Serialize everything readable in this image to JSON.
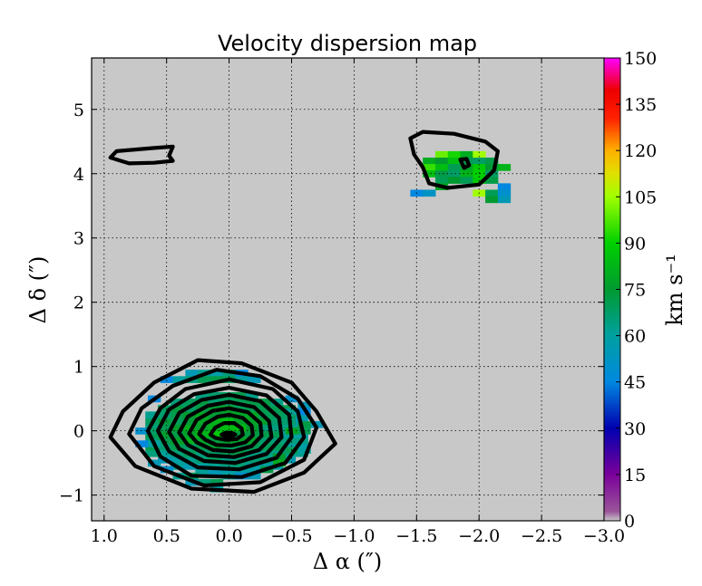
{
  "chart_data": {
    "type": "heatmap",
    "title": "Velocity dispersion map",
    "xlabel": "Δ α  (″)",
    "ylabel": "Δ δ  (″)",
    "xlim": [
      1.1,
      -3.0
    ],
    "ylim": [
      -1.4,
      5.8
    ],
    "x_ticks": [
      1.0,
      0.5,
      0.0,
      -0.5,
      -1.0,
      -1.5,
      -2.0,
      -2.5,
      -3.0
    ],
    "x_tick_labels": [
      "1.0",
      "0.5",
      "0.0",
      "−0.5",
      "−1.0",
      "−1.5",
      "−2.0",
      "−2.5",
      "−3.0"
    ],
    "y_ticks": [
      -1,
      0,
      1,
      2,
      3,
      4,
      5
    ],
    "y_tick_labels": [
      "−1",
      "0",
      "1",
      "2",
      "3",
      "4",
      "5"
    ],
    "grid": true,
    "background_color": "#c8c8c8",
    "colorbar": {
      "label": "km s⁻¹",
      "range": [
        0,
        150
      ],
      "ticks": [
        0,
        15,
        30,
        45,
        60,
        75,
        90,
        105,
        120,
        135,
        150
      ],
      "tick_labels": [
        "0",
        "15",
        "30",
        "45",
        "60",
        "75",
        "90",
        "105",
        "120",
        "135",
        "150"
      ]
    },
    "pixel_size_arcsec": 0.1,
    "pixels": [
      {
        "x": 0.5,
        "y": 0.8,
        "v": 45
      },
      {
        "x": 0.3,
        "y": 0.9,
        "v": 55
      },
      {
        "x": 0.2,
        "y": 0.9,
        "v": 62
      },
      {
        "x": 0.1,
        "y": 0.9,
        "v": 58
      },
      {
        "x": 0.0,
        "y": 0.9,
        "v": 65
      },
      {
        "x": -0.1,
        "y": 0.9,
        "v": 45
      },
      {
        "x": 0.4,
        "y": 0.8,
        "v": 60
      },
      {
        "x": 0.3,
        "y": 0.8,
        "v": 65
      },
      {
        "x": 0.2,
        "y": 0.8,
        "v": 70
      },
      {
        "x": 0.1,
        "y": 0.8,
        "v": 72
      },
      {
        "x": 0.0,
        "y": 0.8,
        "v": 70
      },
      {
        "x": -0.1,
        "y": 0.8,
        "v": 60
      },
      {
        "x": -0.2,
        "y": 0.8,
        "v": 55
      },
      {
        "x": 0.6,
        "y": 0.5,
        "v": 45
      },
      {
        "x": -0.5,
        "y": 0.5,
        "v": 50
      },
      {
        "x": -0.6,
        "y": 0.4,
        "v": 55
      },
      {
        "x": -0.5,
        "y": 0.3,
        "v": 62
      },
      {
        "x": -0.6,
        "y": 0.3,
        "v": 45
      },
      {
        "x": -0.7,
        "y": 0.1,
        "v": 55
      },
      {
        "x": -0.6,
        "y": 0.1,
        "v": 72
      },
      {
        "x": -0.5,
        "y": 0.0,
        "v": 78
      },
      {
        "x": -0.6,
        "y": 0.0,
        "v": 70
      },
      {
        "x": 0.7,
        "y": 0.0,
        "v": 50
      },
      {
        "x": 0.6,
        "y": 0.0,
        "v": 68
      },
      {
        "x": 0.7,
        "y": -0.2,
        "v": 45
      },
      {
        "x": 0.6,
        "y": -0.2,
        "v": 60
      },
      {
        "x": -0.4,
        "y": -0.4,
        "v": 75
      },
      {
        "x": -0.5,
        "y": -0.3,
        "v": 70
      },
      {
        "x": -0.6,
        "y": -0.3,
        "v": 60
      },
      {
        "x": 0.6,
        "y": -0.5,
        "v": 55
      },
      {
        "x": 0.5,
        "y": -0.6,
        "v": 50
      },
      {
        "x": 0.4,
        "y": -0.7,
        "v": 62
      },
      {
        "x": 0.3,
        "y": -0.7,
        "v": 68
      },
      {
        "x": 0.2,
        "y": -0.8,
        "v": 65
      },
      {
        "x": 0.1,
        "y": -0.8,
        "v": 70
      },
      {
        "x": 0.0,
        "y": -0.7,
        "v": 60
      },
      {
        "x": -0.1,
        "y": -0.7,
        "v": 50
      },
      {
        "x": -0.2,
        "y": -0.7,
        "v": 55
      },
      {
        "x": -0.3,
        "y": -0.6,
        "v": 72
      },
      {
        "x": -0.4,
        "y": -0.5,
        "v": 80
      },
      {
        "x": 0.3,
        "y": -0.8,
        "v": 55
      },
      {
        "x": 0.1,
        "y": -0.9,
        "v": 60
      },
      {
        "x": -1.7,
        "y": 4.3,
        "v": 100
      },
      {
        "x": -1.8,
        "y": 4.3,
        "v": 92
      },
      {
        "x": -1.9,
        "y": 4.3,
        "v": 80
      },
      {
        "x": -2.0,
        "y": 4.3,
        "v": 105
      },
      {
        "x": -1.6,
        "y": 4.2,
        "v": 80
      },
      {
        "x": -1.7,
        "y": 4.2,
        "v": 75
      },
      {
        "x": -1.8,
        "y": 4.2,
        "v": 85
      },
      {
        "x": -1.9,
        "y": 4.2,
        "v": 70
      },
      {
        "x": -2.0,
        "y": 4.2,
        "v": 68
      },
      {
        "x": -2.1,
        "y": 4.2,
        "v": 72
      },
      {
        "x": -1.6,
        "y": 4.1,
        "v": 95
      },
      {
        "x": -1.7,
        "y": 4.1,
        "v": 85
      },
      {
        "x": -1.8,
        "y": 4.1,
        "v": 70
      },
      {
        "x": -1.9,
        "y": 4.1,
        "v": 78
      },
      {
        "x": -2.0,
        "y": 4.1,
        "v": 88
      },
      {
        "x": -2.1,
        "y": 4.1,
        "v": 75
      },
      {
        "x": -2.2,
        "y": 4.1,
        "v": 82
      },
      {
        "x": -1.6,
        "y": 4.0,
        "v": 85
      },
      {
        "x": -1.7,
        "y": 4.0,
        "v": 72
      },
      {
        "x": -1.8,
        "y": 4.0,
        "v": 68
      },
      {
        "x": -1.9,
        "y": 4.0,
        "v": 82
      },
      {
        "x": -2.0,
        "y": 4.0,
        "v": 90
      },
      {
        "x": -2.1,
        "y": 4.0,
        "v": 68
      },
      {
        "x": -1.7,
        "y": 3.9,
        "v": 70
      },
      {
        "x": -1.8,
        "y": 3.9,
        "v": 75
      },
      {
        "x": -1.9,
        "y": 3.9,
        "v": 70
      },
      {
        "x": -2.0,
        "y": 3.9,
        "v": 88
      },
      {
        "x": -2.1,
        "y": 3.9,
        "v": 72
      },
      {
        "x": -2.2,
        "y": 3.8,
        "v": 45
      },
      {
        "x": -1.5,
        "y": 3.7,
        "v": 45
      },
      {
        "x": -1.6,
        "y": 3.7,
        "v": 52
      },
      {
        "x": -1.7,
        "y": 3.8,
        "v": 78
      },
      {
        "x": -2.0,
        "y": 3.7,
        "v": 105
      },
      {
        "x": -2.1,
        "y": 3.7,
        "v": 70
      },
      {
        "x": -2.2,
        "y": 3.7,
        "v": 50
      },
      {
        "x": -2.1,
        "y": 3.6,
        "v": 75
      },
      {
        "x": -2.2,
        "y": 3.6,
        "v": 55
      }
    ],
    "center_peak": {
      "cx": 0.02,
      "cy": -0.05,
      "sx": 0.45,
      "sy": 0.42,
      "v_center": 88,
      "v_edge": 66
    },
    "contours": [
      [
        [
          0.95,
          -0.1
        ],
        [
          0.85,
          0.3
        ],
        [
          0.6,
          0.75
        ],
        [
          0.25,
          1.1
        ],
        [
          -0.1,
          1.05
        ],
        [
          -0.5,
          0.75
        ],
        [
          -0.7,
          0.3
        ],
        [
          -0.85,
          -0.2
        ],
        [
          -0.6,
          -0.65
        ],
        [
          -0.2,
          -0.95
        ],
        [
          0.3,
          -0.9
        ],
        [
          0.75,
          -0.55
        ],
        [
          0.95,
          -0.1
        ]
      ],
      [
        [
          0.8,
          -0.05
        ],
        [
          0.7,
          0.35
        ],
        [
          0.45,
          0.7
        ],
        [
          0.1,
          0.95
        ],
        [
          -0.25,
          0.85
        ],
        [
          -0.55,
          0.5
        ],
        [
          -0.7,
          0.05
        ],
        [
          -0.6,
          -0.45
        ],
        [
          -0.25,
          -0.8
        ],
        [
          0.2,
          -0.85
        ],
        [
          0.6,
          -0.55
        ],
        [
          0.8,
          -0.05
        ]
      ],
      [
        [
          0.65,
          0.0
        ],
        [
          0.55,
          0.35
        ],
        [
          0.35,
          0.65
        ],
        [
          0.0,
          0.8
        ],
        [
          -0.35,
          0.65
        ],
        [
          -0.55,
          0.3
        ],
        [
          -0.6,
          -0.1
        ],
        [
          -0.45,
          -0.5
        ],
        [
          -0.1,
          -0.72
        ],
        [
          0.3,
          -0.7
        ],
        [
          0.55,
          -0.4
        ],
        [
          0.65,
          0.0
        ]
      ],
      [
        [
          0.57,
          0.0
        ],
        [
          0.48,
          0.33
        ],
        [
          0.28,
          0.57
        ],
        [
          0.0,
          0.67
        ],
        [
          -0.3,
          0.55
        ],
        [
          -0.48,
          0.25
        ],
        [
          -0.5,
          -0.1
        ],
        [
          -0.38,
          -0.42
        ],
        [
          -0.08,
          -0.6
        ],
        [
          0.25,
          -0.57
        ],
        [
          0.48,
          -0.32
        ],
        [
          0.57,
          0.0
        ]
      ],
      [
        [
          0.48,
          -0.02
        ],
        [
          0.4,
          0.28
        ],
        [
          0.22,
          0.48
        ],
        [
          0.0,
          0.56
        ],
        [
          -0.25,
          0.46
        ],
        [
          -0.4,
          0.2
        ],
        [
          -0.42,
          -0.1
        ],
        [
          -0.3,
          -0.36
        ],
        [
          -0.05,
          -0.5
        ],
        [
          0.2,
          -0.47
        ],
        [
          0.4,
          -0.28
        ],
        [
          0.48,
          -0.02
        ]
      ],
      [
        [
          0.4,
          -0.03
        ],
        [
          0.33,
          0.22
        ],
        [
          0.17,
          0.39
        ],
        [
          0.0,
          0.45
        ],
        [
          -0.2,
          0.37
        ],
        [
          -0.32,
          0.15
        ],
        [
          -0.34,
          -0.1
        ],
        [
          -0.24,
          -0.3
        ],
        [
          -0.04,
          -0.41
        ],
        [
          0.17,
          -0.38
        ],
        [
          0.33,
          -0.22
        ],
        [
          0.4,
          -0.03
        ]
      ],
      [
        [
          0.32,
          -0.04
        ],
        [
          0.26,
          0.17
        ],
        [
          0.13,
          0.31
        ],
        [
          0.0,
          0.35
        ],
        [
          -0.15,
          0.29
        ],
        [
          -0.25,
          0.12
        ],
        [
          -0.26,
          -0.08
        ],
        [
          -0.18,
          -0.24
        ],
        [
          -0.03,
          -0.32
        ],
        [
          0.13,
          -0.3
        ],
        [
          0.26,
          -0.18
        ],
        [
          0.32,
          -0.04
        ]
      ],
      [
        [
          0.24,
          -0.05
        ],
        [
          0.19,
          0.11
        ],
        [
          0.09,
          0.22
        ],
        [
          0.0,
          0.25
        ],
        [
          -0.11,
          0.2
        ],
        [
          -0.18,
          0.08
        ],
        [
          -0.19,
          -0.07
        ],
        [
          -0.13,
          -0.18
        ],
        [
          -0.02,
          -0.23
        ],
        [
          0.1,
          -0.22
        ],
        [
          0.19,
          -0.14
        ],
        [
          0.24,
          -0.05
        ]
      ],
      [
        [
          0.15,
          -0.06
        ],
        [
          0.11,
          0.05
        ],
        [
          0.04,
          0.12
        ],
        [
          -0.04,
          0.12
        ],
        [
          -0.1,
          0.04
        ],
        [
          -0.11,
          -0.06
        ],
        [
          -0.06,
          -0.13
        ],
        [
          0.03,
          -0.14
        ],
        [
          0.11,
          -0.11
        ],
        [
          0.15,
          -0.06
        ]
      ],
      [
        [
          0.06,
          -0.06
        ],
        [
          0.03,
          -0.03
        ],
        [
          -0.02,
          -0.03
        ],
        [
          -0.05,
          -0.06
        ],
        [
          -0.02,
          -0.09
        ],
        [
          0.03,
          -0.09
        ],
        [
          0.06,
          -0.06
        ]
      ],
      [
        [
          0.95,
          4.25
        ],
        [
          0.9,
          4.35
        ],
        [
          0.6,
          4.4
        ],
        [
          0.45,
          4.42
        ],
        [
          0.48,
          4.28
        ],
        [
          0.45,
          4.2
        ],
        [
          0.6,
          4.17
        ],
        [
          0.8,
          4.16
        ],
        [
          0.95,
          4.25
        ]
      ],
      [
        [
          -1.45,
          4.55
        ],
        [
          -1.55,
          4.65
        ],
        [
          -1.8,
          4.62
        ],
        [
          -2.05,
          4.5
        ],
        [
          -2.15,
          4.35
        ],
        [
          -2.12,
          4.05
        ],
        [
          -2.0,
          3.83
        ],
        [
          -1.75,
          3.78
        ],
        [
          -1.6,
          3.85
        ],
        [
          -1.55,
          4.1
        ],
        [
          -1.48,
          4.3
        ],
        [
          -1.45,
          4.55
        ]
      ],
      [
        [
          -1.85,
          4.22
        ],
        [
          -1.9,
          4.23
        ],
        [
          -1.92,
          4.13
        ],
        [
          -1.88,
          4.09
        ],
        [
          -1.85,
          4.22
        ]
      ]
    ]
  }
}
